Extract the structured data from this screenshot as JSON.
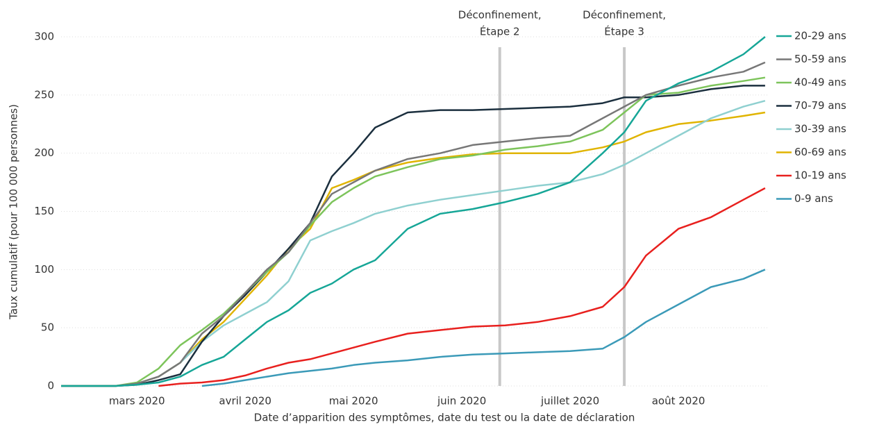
{
  "chart_data": {
    "type": "line",
    "xlabel": "Date d’apparition des symptômes, date du test ou la date de déclaration",
    "ylabel": "Taux cumulatif (pour 100 000 personnes)",
    "x": [
      2.3,
      2.8,
      3.0,
      3.2,
      3.4,
      3.6,
      3.8,
      4.0,
      4.2,
      4.4,
      4.6,
      4.8,
      5.0,
      5.2,
      5.5,
      5.8,
      6.1,
      6.4,
      6.7,
      7.0,
      7.3,
      7.5,
      7.7,
      8.0,
      8.3,
      8.6,
      8.8
    ],
    "xlim": [
      2.3,
      8.82
    ],
    "xticks": [
      {
        "value": 3,
        "label": "mars 2020"
      },
      {
        "value": 4,
        "label": "avril 2020"
      },
      {
        "value": 5,
        "label": "mai 2020"
      },
      {
        "value": 6,
        "label": "juin 2020"
      },
      {
        "value": 7,
        "label": "juillet 2020"
      },
      {
        "value": 8,
        "label": "août 2020"
      }
    ],
    "ylim": [
      0,
      300
    ],
    "yticks": [
      0,
      50,
      100,
      150,
      200,
      250,
      300
    ],
    "grid": true,
    "legend": "right",
    "annotations": [
      {
        "x": 6.35,
        "text": [
          "Déconfinement,",
          "Étape 2"
        ]
      },
      {
        "x": 7.5,
        "text": [
          "Déconfinement,",
          "Étape 3"
        ]
      }
    ],
    "series": [
      {
        "name": "20-29 ans",
        "color": "#16a697",
        "values": [
          0,
          0,
          1,
          3,
          8,
          18,
          25,
          40,
          55,
          65,
          80,
          88,
          100,
          108,
          135,
          148,
          152,
          158,
          165,
          175,
          200,
          218,
          245,
          260,
          270,
          285,
          300
        ]
      },
      {
        "name": "50-59 ans",
        "color": "#777777",
        "values": [
          0,
          0,
          2,
          8,
          20,
          45,
          60,
          80,
          100,
          115,
          140,
          165,
          175,
          185,
          195,
          200,
          207,
          210,
          213,
          215,
          230,
          240,
          250,
          258,
          265,
          270,
          278
        ]
      },
      {
        "name": "40-49 ans",
        "color": "#7dc45b",
        "values": [
          0,
          0,
          3,
          15,
          35,
          48,
          62,
          80,
          98,
          115,
          138,
          158,
          170,
          180,
          188,
          195,
          198,
          203,
          206,
          210,
          220,
          235,
          250,
          252,
          258,
          262,
          265
        ]
      },
      {
        "name": "70-79 ans",
        "color": "#1b2f3e",
        "values": [
          0,
          0,
          1,
          5,
          10,
          38,
          60,
          78,
          98,
          118,
          140,
          180,
          200,
          222,
          235,
          237,
          237,
          238,
          239,
          240,
          243,
          248,
          248,
          250,
          255,
          258,
          258
        ]
      },
      {
        "name": "30-39 ans",
        "color": "#8fd0d0",
        "values": [
          0,
          0,
          2,
          8,
          20,
          38,
          52,
          62,
          72,
          90,
          125,
          133,
          140,
          148,
          155,
          160,
          164,
          168,
          172,
          175,
          182,
          190,
          200,
          215,
          230,
          240,
          245
        ]
      },
      {
        "name": "60-69 ans",
        "color": "#e0b400",
        "values": [
          0,
          0,
          2,
          8,
          20,
          40,
          55,
          75,
          95,
          118,
          135,
          170,
          177,
          185,
          192,
          196,
          199,
          200,
          200,
          200,
          205,
          210,
          218,
          225,
          228,
          232,
          235
        ]
      },
      {
        "name": "10-19 ans",
        "color": "#e8201e",
        "values": [
          null,
          null,
          null,
          0,
          2,
          3,
          5,
          9,
          15,
          20,
          23,
          28,
          33,
          38,
          45,
          48,
          51,
          52,
          55,
          60,
          68,
          85,
          112,
          135,
          145,
          160,
          170
        ]
      },
      {
        "name": "0-9 ans",
        "color": "#3b9ab8",
        "values": [
          null,
          null,
          null,
          null,
          null,
          0,
          2,
          5,
          8,
          11,
          13,
          15,
          18,
          20,
          22,
          25,
          27,
          28,
          29,
          30,
          32,
          42,
          55,
          70,
          85,
          92,
          100
        ]
      }
    ]
  }
}
